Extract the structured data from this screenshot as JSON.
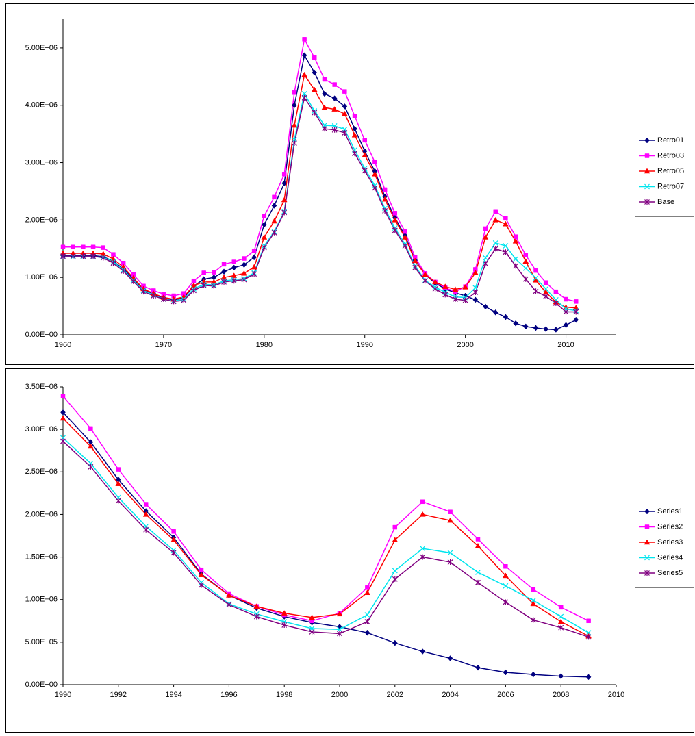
{
  "chart_data": [
    {
      "type": "line",
      "x": [
        1960,
        1961,
        1962,
        1963,
        1964,
        1965,
        1966,
        1967,
        1968,
        1969,
        1970,
        1971,
        1972,
        1973,
        1974,
        1975,
        1976,
        1977,
        1978,
        1979,
        1980,
        1981,
        1982,
        1983,
        1984,
        1985,
        1986,
        1987,
        1988,
        1989,
        1990,
        1991,
        1992,
        1993,
        1994,
        1995,
        1996,
        1997,
        1998,
        1999,
        2000,
        2001,
        2002,
        2003,
        2004,
        2005,
        2006,
        2007,
        2008,
        2009,
        2010,
        2011
      ],
      "xlim": [
        1960,
        2015
      ],
      "xticks": [
        1960,
        1970,
        1980,
        1990,
        2000,
        2010
      ],
      "ylim": [
        0,
        5500000.0
      ],
      "yticks": [
        {
          "value": 0,
          "label": "0.00E+00"
        },
        {
          "value": 1000000.0,
          "label": "1.00E+06"
        },
        {
          "value": 2000000.0,
          "label": "2.00E+06"
        },
        {
          "value": 3000000.0,
          "label": "3.00E+06"
        },
        {
          "value": 4000000.0,
          "label": "4.00E+06"
        },
        {
          "value": 5000000.0,
          "label": "5.00E+06"
        }
      ],
      "grid": false,
      "legend": "right",
      "series": [
        {
          "name": "Retro01",
          "color": "#000080",
          "marker": "diamond",
          "values": [
            1380000.0,
            1380000.0,
            1380000.0,
            1380000.0,
            1360000.0,
            1280000.0,
            1150000.0,
            970000.0,
            790000.0,
            710000.0,
            640000.0,
            610000.0,
            640000.0,
            850000.0,
            970000.0,
            1000000.0,
            1100000.0,
            1170000.0,
            1220000.0,
            1350000.0,
            1920000.0,
            2250000.0,
            2640000.0,
            4000000.0,
            4870000.0,
            4570000.0,
            4200000.0,
            4120000.0,
            3980000.0,
            3590000.0,
            3200000.0,
            2850000.0,
            2410000.0,
            2040000.0,
            1730000.0,
            1300000.0,
            1050000.0,
            900000.0,
            800000.0,
            730000.0,
            680000.0,
            610000.0,
            490000.0,
            390000.0,
            310000.0,
            200000.0,
            145000.0,
            120000.0,
            100000.0,
            90000.0,
            170000.0,
            260000.0
          ]
        },
        {
          "name": "Retro03",
          "color": "#ff00ff",
          "marker": "square",
          "values": [
            1530000.0,
            1530000.0,
            1530000.0,
            1530000.0,
            1520000.0,
            1400000.0,
            1250000.0,
            1050000.0,
            850000.0,
            770000.0,
            710000.0,
            680000.0,
            720000.0,
            940000.0,
            1080000.0,
            1090000.0,
            1230000.0,
            1270000.0,
            1330000.0,
            1460000.0,
            2070000.0,
            2400000.0,
            2800000.0,
            4220000.0,
            5150000.0,
            4830000.0,
            4450000.0,
            4360000.0,
            4240000.0,
            3810000.0,
            3390000.0,
            3010000.0,
            2530000.0,
            2120000.0,
            1800000.0,
            1350000.0,
            1070000.0,
            920000.0,
            820000.0,
            750000.0,
            840000.0,
            1140000.0,
            1850000.0,
            2150000.0,
            2030000.0,
            1710000.0,
            1390000.0,
            1120000.0,
            910000.0,
            750000.0,
            620000.0,
            580000.0
          ]
        },
        {
          "name": "Retro05",
          "color": "#ff0000",
          "marker": "triangle",
          "values": [
            1420000.0,
            1420000.0,
            1420000.0,
            1420000.0,
            1410000.0,
            1320000.0,
            1180000.0,
            990000.0,
            800000.0,
            720000.0,
            650000.0,
            620000.0,
            660000.0,
            860000.0,
            920000.0,
            920000.0,
            1000000.0,
            1030000.0,
            1070000.0,
            1180000.0,
            1700000.0,
            1980000.0,
            2350000.0,
            3650000.0,
            4530000.0,
            4270000.0,
            3960000.0,
            3930000.0,
            3850000.0,
            3480000.0,
            3130000.0,
            2800000.0,
            2360000.0,
            2000000.0,
            1700000.0,
            1290000.0,
            1050000.0,
            920000.0,
            840000.0,
            790000.0,
            830000.0,
            1080000.0,
            1700000.0,
            2000000.0,
            1930000.0,
            1630000.0,
            1280000.0,
            950000.0,
            740000.0,
            570000.0,
            480000.0,
            470000.0
          ]
        },
        {
          "name": "Retro07",
          "color": "#00e5ee",
          "marker": "x",
          "values": [
            1360000.0,
            1360000.0,
            1360000.0,
            1360000.0,
            1350000.0,
            1270000.0,
            1130000.0,
            950000.0,
            770000.0,
            690000.0,
            620000.0,
            590000.0,
            620000.0,
            800000.0,
            880000.0,
            870000.0,
            940000.0,
            960000.0,
            980000.0,
            1080000.0,
            1550000.0,
            1800000.0,
            2150000.0,
            3400000.0,
            4200000.0,
            3900000.0,
            3650000.0,
            3640000.0,
            3580000.0,
            3220000.0,
            2900000.0,
            2600000.0,
            2200000.0,
            1860000.0,
            1580000.0,
            1200000.0,
            950000.0,
            830000.0,
            740000.0,
            660000.0,
            650000.0,
            820000.0,
            1340000.0,
            1600000.0,
            1550000.0,
            1320000.0,
            1160000.0,
            990000.0,
            800000.0,
            610000.0,
            450000.0,
            420000.0
          ]
        },
        {
          "name": "Base",
          "color": "#800080",
          "marker": "asterisk",
          "values": [
            1370000.0,
            1370000.0,
            1370000.0,
            1370000.0,
            1340000.0,
            1250000.0,
            1110000.0,
            930000.0,
            750000.0,
            680000.0,
            620000.0,
            580000.0,
            600000.0,
            770000.0,
            860000.0,
            850000.0,
            920000.0,
            940000.0,
            960000.0,
            1060000.0,
            1520000.0,
            1780000.0,
            2130000.0,
            3340000.0,
            4130000.0,
            3870000.0,
            3590000.0,
            3570000.0,
            3520000.0,
            3160000.0,
            2860000.0,
            2560000.0,
            2160000.0,
            1820000.0,
            1550000.0,
            1170000.0,
            940000.0,
            800000.0,
            700000.0,
            620000.0,
            600000.0,
            740000.0,
            1240000.0,
            1500000.0,
            1440000.0,
            1200000.0,
            970000.0,
            760000.0,
            670000.0,
            550000.0,
            400000.0,
            400000.0
          ]
        }
      ]
    },
    {
      "type": "line",
      "x": [
        1990,
        1991,
        1992,
        1993,
        1994,
        1995,
        1996,
        1997,
        1998,
        1999,
        2000,
        2001,
        2002,
        2003,
        2004,
        2005,
        2006,
        2007,
        2008,
        2009
      ],
      "xlim": [
        1990,
        2010
      ],
      "xticks": [
        1990,
        1992,
        1994,
        1996,
        1998,
        2000,
        2002,
        2004,
        2006,
        2008,
        2010
      ],
      "ylim": [
        0,
        3500000.0
      ],
      "yticks": [
        {
          "value": 0,
          "label": "0.00E+00"
        },
        {
          "value": 500000.0,
          "label": "5.00E+05"
        },
        {
          "value": 1000000.0,
          "label": "1.00E+06"
        },
        {
          "value": 1500000.0,
          "label": "1.50E+06"
        },
        {
          "value": 2000000.0,
          "label": "2.00E+06"
        },
        {
          "value": 2500000.0,
          "label": "2.50E+06"
        },
        {
          "value": 3000000.0,
          "label": "3.00E+06"
        },
        {
          "value": 3500000.0,
          "label": "3.50E+06"
        }
      ],
      "grid": false,
      "legend": "right",
      "series": [
        {
          "name": "Series1",
          "color": "#000080",
          "marker": "diamond",
          "values": [
            3200000.0,
            2850000.0,
            2410000.0,
            2040000.0,
            1730000.0,
            1300000.0,
            1050000.0,
            900000.0,
            800000.0,
            730000.0,
            680000.0,
            610000.0,
            490000.0,
            390000.0,
            310000.0,
            200000.0,
            145000.0,
            120000.0,
            100000.0,
            90000.0
          ]
        },
        {
          "name": "Series2",
          "color": "#ff00ff",
          "marker": "square",
          "values": [
            3390000.0,
            3010000.0,
            2530000.0,
            2120000.0,
            1800000.0,
            1350000.0,
            1070000.0,
            920000.0,
            820000.0,
            750000.0,
            840000.0,
            1140000.0,
            1850000.0,
            2150000.0,
            2030000.0,
            1710000.0,
            1390000.0,
            1120000.0,
            910000.0,
            750000.0
          ]
        },
        {
          "name": "Series3",
          "color": "#ff0000",
          "marker": "triangle",
          "values": [
            3130000.0,
            2800000.0,
            2360000.0,
            2000000.0,
            1700000.0,
            1290000.0,
            1050000.0,
            920000.0,
            840000.0,
            790000.0,
            830000.0,
            1080000.0,
            1700000.0,
            2000000.0,
            1930000.0,
            1630000.0,
            1280000.0,
            950000.0,
            740000.0,
            570000.0
          ]
        },
        {
          "name": "Series4",
          "color": "#00e5ee",
          "marker": "x",
          "values": [
            2900000.0,
            2600000.0,
            2200000.0,
            1860000.0,
            1580000.0,
            1200000.0,
            950000.0,
            830000.0,
            740000.0,
            660000.0,
            650000.0,
            820000.0,
            1340000.0,
            1600000.0,
            1550000.0,
            1320000.0,
            1160000.0,
            990000.0,
            800000.0,
            610000.0
          ]
        },
        {
          "name": "Series5",
          "color": "#800080",
          "marker": "asterisk",
          "values": [
            2860000.0,
            2560000.0,
            2160000.0,
            1820000.0,
            1550000.0,
            1170000.0,
            940000.0,
            800000.0,
            700000.0,
            620000.0,
            600000.0,
            740000.0,
            1240000.0,
            1500000.0,
            1440000.0,
            1200000.0,
            970000.0,
            760000.0,
            670000.0,
            560000.0
          ]
        }
      ]
    }
  ]
}
